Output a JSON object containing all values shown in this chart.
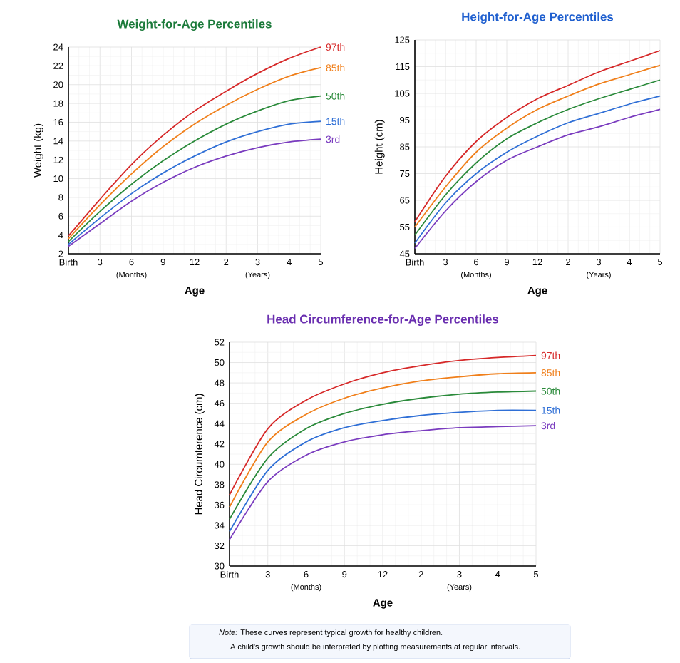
{
  "chart_data": [
    {
      "type": "line",
      "title": "Weight-for-Age Percentiles",
      "xlabel": "Age",
      "ylabel": "Weight (kg)",
      "categories": [
        "Birth",
        "3",
        "6",
        "9",
        "12",
        "2",
        "3",
        "4",
        "5"
      ],
      "ylim": [
        2,
        24
      ],
      "yticks": [
        2,
        4,
        6,
        8,
        10,
        12,
        14,
        16,
        18,
        20,
        22,
        24
      ],
      "grid": true,
      "marker": "none",
      "annotations": [
        "(Months)",
        "(Years)"
      ],
      "series": [
        {
          "name": "97th",
          "color": "#d62828",
          "values": [
            3.9,
            7.8,
            11.5,
            14.6,
            17.2,
            19.3,
            21.2,
            22.8,
            24.0
          ]
        },
        {
          "name": "85th",
          "color": "#f07f1a",
          "values": [
            3.6,
            7.2,
            10.5,
            13.4,
            15.8,
            17.8,
            19.5,
            20.9,
            21.8
          ]
        },
        {
          "name": "50th",
          "color": "#2a8a3a",
          "values": [
            3.3,
            6.5,
            9.4,
            11.9,
            14.0,
            15.8,
            17.2,
            18.3,
            18.8
          ]
        },
        {
          "name": "15th",
          "color": "#2f6fd6",
          "values": [
            3.0,
            5.8,
            8.4,
            10.6,
            12.4,
            13.9,
            15.0,
            15.8,
            16.1
          ]
        },
        {
          "name": "3rd",
          "color": "#7a3cbf",
          "values": [
            2.8,
            5.2,
            7.6,
            9.6,
            11.2,
            12.4,
            13.3,
            13.9,
            14.2
          ]
        }
      ]
    },
    {
      "type": "line",
      "title": "Height-for-Age Percentiles",
      "xlabel": "Age",
      "ylabel": "Height (cm)",
      "categories": [
        "Birth",
        "3",
        "6",
        "9",
        "12",
        "2",
        "3",
        "4",
        "5"
      ],
      "ylim": [
        45,
        125
      ],
      "yticks": [
        45,
        55,
        65,
        75,
        85,
        95,
        105,
        115,
        125
      ],
      "grid": true,
      "marker": "none",
      "annotations": [
        "(Months)",
        "(Years)"
      ],
      "series": [
        {
          "color": "#d62828",
          "values": [
            57,
            74,
            87,
            96,
            103,
            108,
            113,
            117,
            121
          ]
        },
        {
          "color": "#f07f1a",
          "values": [
            55,
            70,
            83,
            92,
            99,
            104,
            108.5,
            112,
            115.5
          ]
        },
        {
          "color": "#2a8a3a",
          "values": [
            52,
            67,
            79,
            88,
            94,
            99,
            103,
            106.5,
            110
          ]
        },
        {
          "color": "#2f6fd6",
          "values": [
            49,
            64,
            75,
            83,
            89,
            94,
            97.5,
            101,
            104
          ]
        },
        {
          "color": "#7a3cbf",
          "values": [
            47,
            61,
            72,
            80,
            85,
            89.5,
            92.5,
            96,
            99
          ]
        }
      ]
    },
    {
      "type": "line",
      "title": "Head Circumference-for-Age Percentiles",
      "xlabel": "Age",
      "ylabel": "Head Circumference (cm)",
      "categories": [
        "Birth",
        "3",
        "6",
        "9",
        "12",
        "2",
        "3",
        "4",
        "5"
      ],
      "ylim": [
        30,
        52
      ],
      "yticks": [
        30,
        32,
        34,
        36,
        38,
        40,
        42,
        44,
        46,
        48,
        50,
        52
      ],
      "grid": true,
      "marker": "none",
      "annotations": [
        "(Months)",
        "(Years)",
        "*Note:* These curves represent typical growth for healthy children.",
        "A child's growth should be interpreted by plotting measurements at regular intervals."
      ],
      "series": [
        {
          "name": "97th",
          "color": "#d62828",
          "values": [
            37,
            43.5,
            46.3,
            47.9,
            49.0,
            49.7,
            50.2,
            50.5,
            50.7
          ]
        },
        {
          "name": "85th",
          "color": "#f07f1a",
          "values": [
            35.8,
            42.2,
            44.9,
            46.5,
            47.5,
            48.2,
            48.6,
            48.9,
            49.0
          ]
        },
        {
          "name": "50th",
          "color": "#2a8a3a",
          "values": [
            34.6,
            40.6,
            43.5,
            45.0,
            45.9,
            46.5,
            46.9,
            47.1,
            47.2
          ]
        },
        {
          "name": "15th",
          "color": "#2f6fd6",
          "values": [
            33.4,
            39.4,
            42.2,
            43.6,
            44.3,
            44.8,
            45.1,
            45.3,
            45.3
          ]
        },
        {
          "name": "3rd",
          "color": "#7a3cbf",
          "values": [
            32.6,
            38.3,
            40.9,
            42.2,
            42.9,
            43.3,
            43.6,
            43.7,
            43.8
          ]
        }
      ]
    }
  ]
}
